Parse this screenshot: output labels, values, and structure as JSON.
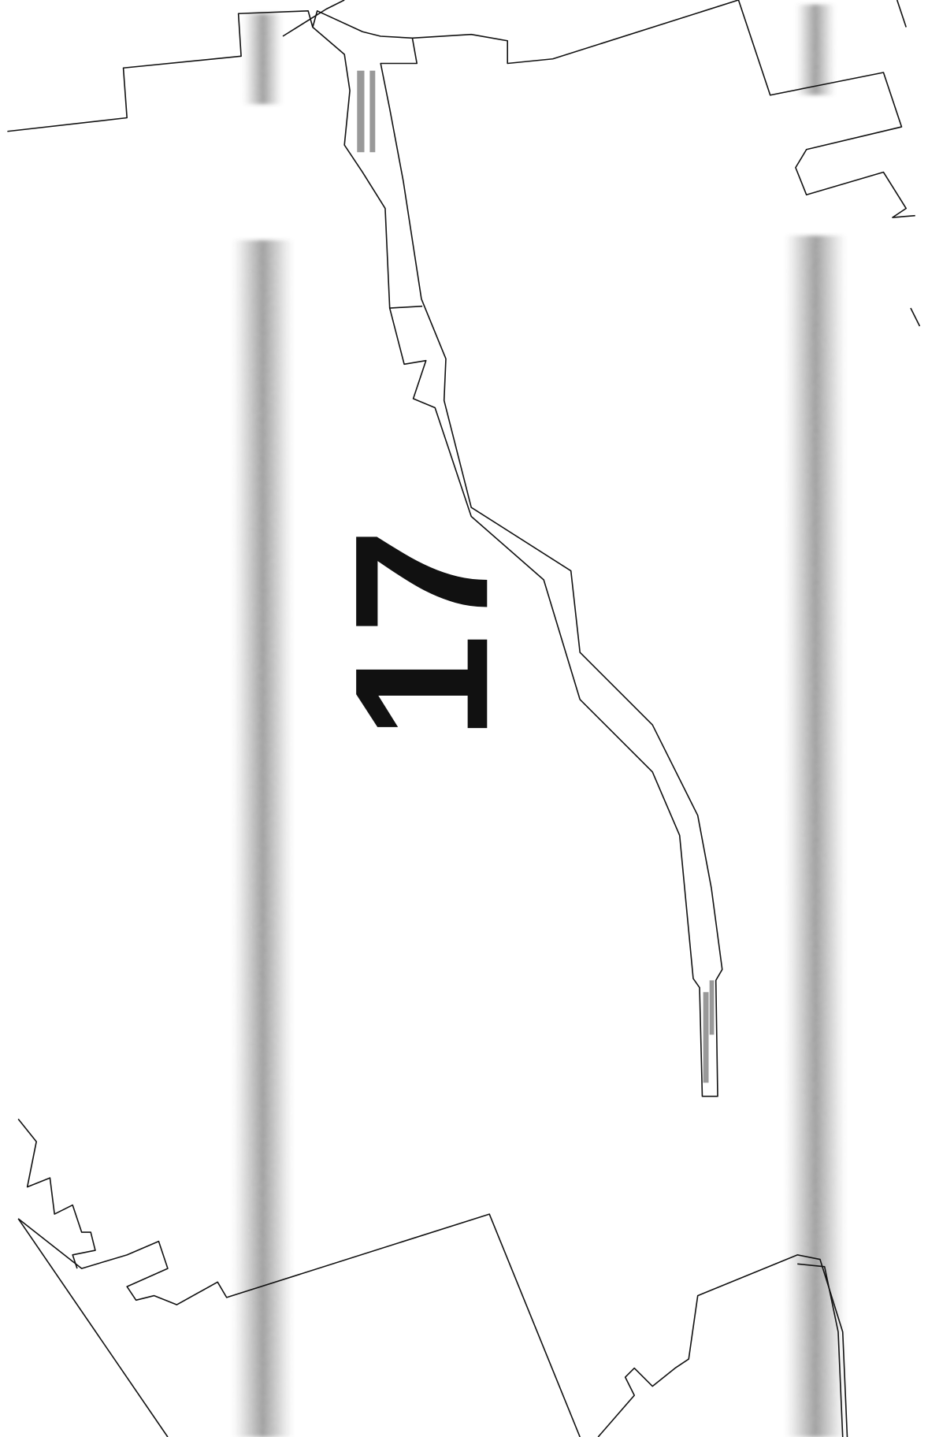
{
  "map": {
    "parcel_label": "17"
  }
}
